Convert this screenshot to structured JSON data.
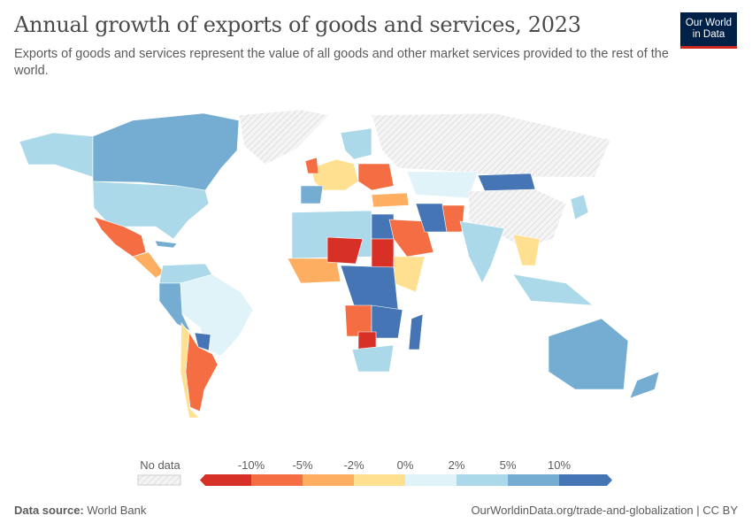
{
  "header": {
    "title": "Annual growth of exports of goods and services, 2023",
    "subtitle": "Exports of goods and services represent the value of all goods and other market services provided to the rest of the world.",
    "logo_text": "Our World in Data"
  },
  "legend": {
    "no_data_label": "No data",
    "ticks": [
      "-10%",
      "-5%",
      "-2%",
      "0%",
      "2%",
      "5%",
      "10%"
    ],
    "bins": [
      {
        "range": "< -10%",
        "color": "#d73027"
      },
      {
        "range": "-10% to -5%",
        "color": "#f46d43"
      },
      {
        "range": "-5% to -2%",
        "color": "#fdae61"
      },
      {
        "range": "-2% to 0%",
        "color": "#fee090"
      },
      {
        "range": "0% to 2%",
        "color": "#e0f3f8"
      },
      {
        "range": "2% to 5%",
        "color": "#abd9e9"
      },
      {
        "range": "5% to 10%",
        "color": "#74add1"
      },
      {
        "range": "> 10%",
        "color": "#4575b4"
      }
    ]
  },
  "footer": {
    "source_label": "Data source:",
    "source": "World Bank",
    "url": "OurWorldinData.org/trade-and-globalization | CC BY"
  }
}
